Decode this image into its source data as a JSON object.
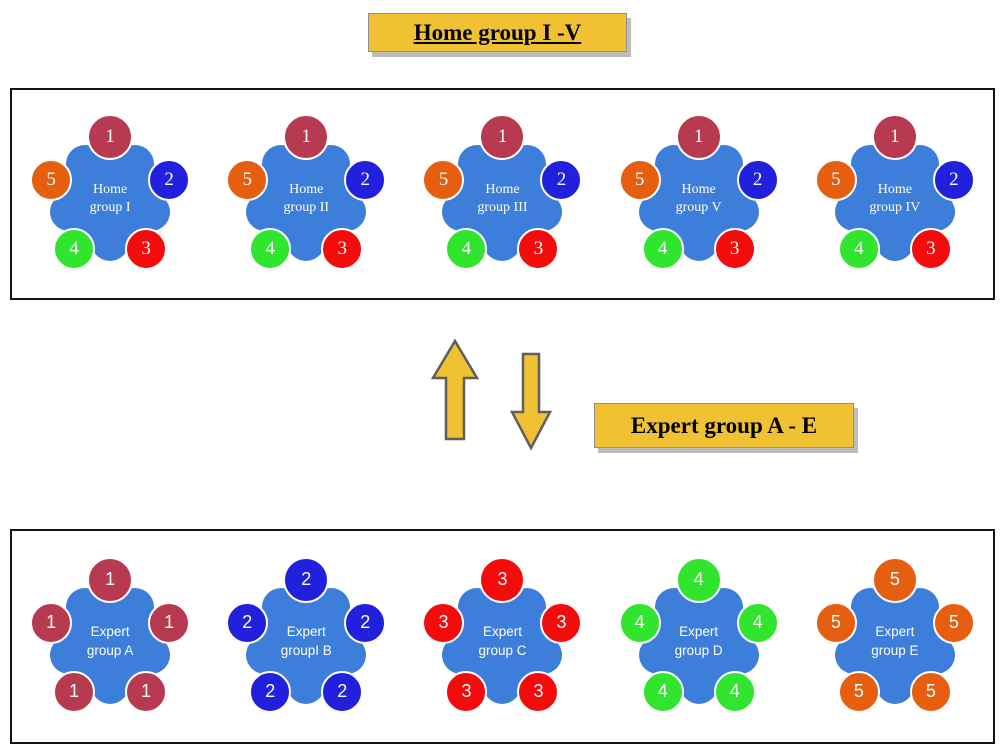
{
  "banners": {
    "home": "Home group I -V",
    "expert": "Expert group A - E"
  },
  "colors": {
    "crimson": "#b83a50",
    "blue": "#2121dd",
    "red": "#f20c0c",
    "green": "#31e42e",
    "orange": "#e65f10",
    "center": "#3c7ed9",
    "banner_bg": "#f0c233"
  },
  "member_colors": {
    "1": "crimson",
    "2": "blue",
    "3": "red",
    "4": "green",
    "5": "orange"
  },
  "home_member_numbers": [
    "1",
    "2",
    "3",
    "4",
    "5"
  ],
  "home_groups": [
    {
      "name": [
        "Home",
        "group I"
      ]
    },
    {
      "name": [
        "Home",
        "group II"
      ]
    },
    {
      "name": [
        "Home",
        "group III"
      ]
    },
    {
      "name": [
        "Home",
        "group V"
      ]
    },
    {
      "name": [
        "Home",
        "group IV"
      ]
    }
  ],
  "expert_groups": [
    {
      "name": [
        "Expert",
        "group A"
      ],
      "number": "1"
    },
    {
      "name": [
        "Expert",
        "groupI B"
      ],
      "number": "2"
    },
    {
      "name": [
        "Expert",
        "group C"
      ],
      "number": "3"
    },
    {
      "name": [
        "Expert",
        "group D"
      ],
      "number": "4"
    },
    {
      "name": [
        "Expert",
        "group E"
      ],
      "number": "5"
    }
  ]
}
